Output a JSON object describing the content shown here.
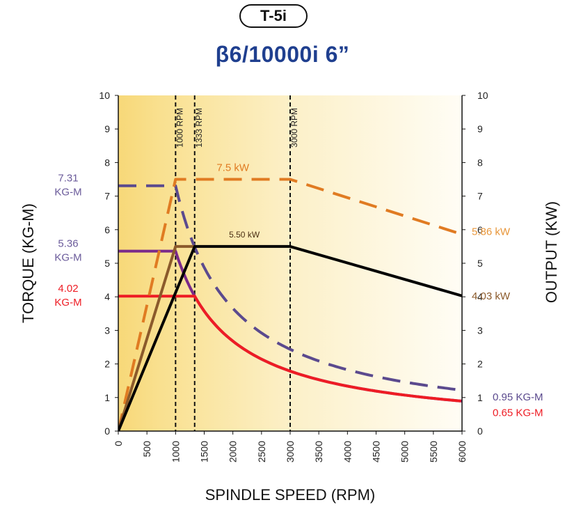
{
  "header": {
    "badge": "T-5i",
    "title": "β6/10000i 6”"
  },
  "chart_data": {
    "type": "line",
    "xlabel": "SPINDLE SPEED (RPM)",
    "ylabel_left": "TORQUE (KG-M)",
    "ylabel_right": "OUTPUT (KW)",
    "xlim": [
      0,
      6000
    ],
    "ylim": [
      0,
      10
    ],
    "y2lim": [
      0,
      10
    ],
    "xticks": [
      "0",
      "500",
      "1000",
      "1500",
      "2000",
      "2500",
      "3000",
      "3500",
      "4000",
      "4500",
      "5000",
      "5500",
      "6000"
    ],
    "yticks": [
      "0",
      "1",
      "2",
      "3",
      "4",
      "5",
      "6",
      "7",
      "8",
      "9",
      "10"
    ],
    "y2ticks": [
      "0",
      "1",
      "2",
      "3",
      "4",
      "5",
      "6",
      "7",
      "8",
      "9",
      "10"
    ],
    "vlines": [
      {
        "x": 1000,
        "label": "1000 RPM"
      },
      {
        "x": 1333,
        "label": "1333 RPM"
      },
      {
        "x": 3000,
        "label": "3000 RPM"
      }
    ],
    "series": [
      {
        "key": "torque_731",
        "color": "#5b4a8e",
        "dashed": true,
        "axis": "left",
        "kind": "torque",
        "flat": 7.31,
        "corner": 1000,
        "power": 7.5
      },
      {
        "key": "torque_536",
        "color": "#7a2a8a",
        "dashed": false,
        "axis": "left",
        "kind": "torque",
        "flat": 5.36,
        "corner": 1000,
        "power": 5.5
      },
      {
        "key": "torque_402",
        "color": "#ee1c24",
        "dashed": false,
        "axis": "left",
        "kind": "torque",
        "flat": 4.02,
        "corner": 1333,
        "power": 5.5
      },
      {
        "key": "output_75",
        "color": "#e07b22",
        "dashed": true,
        "axis": "right",
        "kind": "points",
        "points": [
          [
            0,
            0
          ],
          [
            1000,
            7.5
          ],
          [
            3000,
            7.5
          ],
          [
            6000,
            5.86
          ]
        ]
      },
      {
        "key": "output_55_brown",
        "color": "#8b5a2b",
        "dashed": false,
        "axis": "right",
        "kind": "points",
        "points": [
          [
            0,
            0
          ],
          [
            1000,
            5.5
          ],
          [
            1333,
            5.5
          ]
        ]
      },
      {
        "key": "output_55",
        "color": "#000000",
        "dashed": false,
        "axis": "right",
        "kind": "points",
        "points": [
          [
            0,
            0
          ],
          [
            1333,
            5.5
          ],
          [
            3000,
            5.5
          ],
          [
            6000,
            4.03
          ]
        ]
      }
    ],
    "annotations": [
      {
        "text": "7.5 kW",
        "color": "#e07b22"
      },
      {
        "text": "5.50 kW",
        "color": "#4a2e12"
      }
    ],
    "left_labels": [
      {
        "line1": "7.31",
        "line2": "KG-M",
        "value": 7.31,
        "color": "#6a5a9a"
      },
      {
        "line1": "5.36",
        "line2": "KG-M",
        "value": 5.36,
        "color": "#6a5a9a"
      },
      {
        "line1": "4.02",
        "line2": "KG-M",
        "value": 4.02,
        "color": "#ee1c24"
      }
    ],
    "right_labels": [
      {
        "text": "5.86 kW",
        "value": 5.86,
        "color": "#e8963a"
      },
      {
        "text": "4.03 kW",
        "value": 4.03,
        "color": "#8b5a2b"
      },
      {
        "text": "0.95 KG-M",
        "value": 0.95,
        "color": "#5b4a8e"
      },
      {
        "text": "0.65 KG-M",
        "value": 0.65,
        "color": "#ee1c24"
      }
    ]
  }
}
